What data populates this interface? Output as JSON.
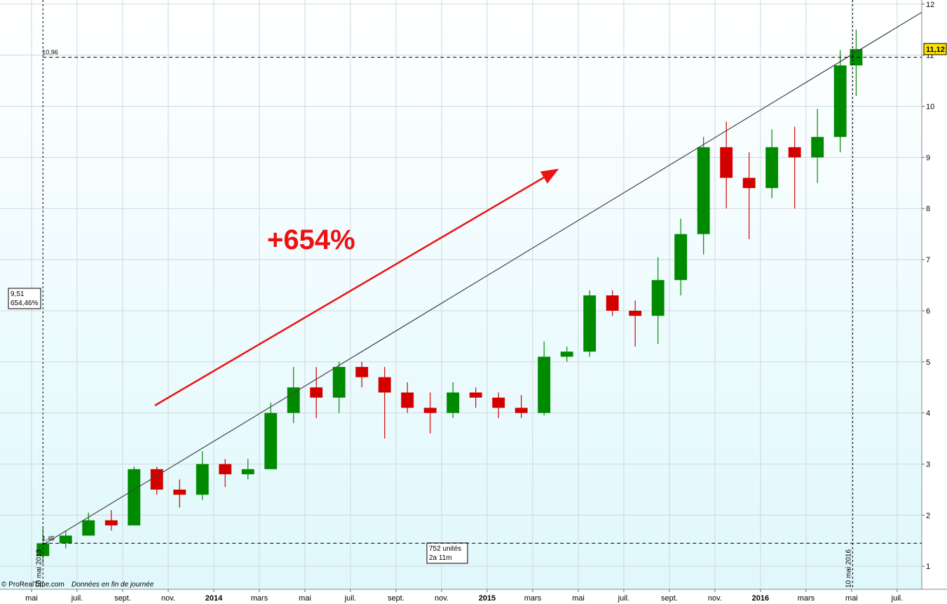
{
  "chart_data": {
    "type": "candlestick",
    "x": [
      0.5,
      1.5,
      2.5,
      3.5,
      4.5,
      5.5,
      6.5,
      7.5,
      8.5,
      9.5,
      10.5,
      11.5,
      12.5,
      13.5,
      14.5,
      15.5,
      16.5,
      17.5,
      18.5,
      19.5,
      20.5,
      21.5,
      22.5,
      23.5,
      24.5,
      25.5,
      26.5,
      27.5,
      28.5,
      29.5,
      30.5,
      31.5,
      32.5,
      33.5,
      34.5,
      35.5,
      36.2
    ],
    "open": [
      1.2,
      1.45,
      1.6,
      1.9,
      1.8,
      2.9,
      2.5,
      2.4,
      3.0,
      2.8,
      2.9,
      4.0,
      4.5,
      4.3,
      4.9,
      4.7,
      4.4,
      4.1,
      4.0,
      4.4,
      4.3,
      4.1,
      4.0,
      5.1,
      5.2,
      6.3,
      6.0,
      5.9,
      6.6,
      7.5,
      9.2,
      8.6,
      8.4,
      9.2,
      9.0,
      9.4,
      10.8
    ],
    "high": [
      1.75,
      1.7,
      2.05,
      2.1,
      2.95,
      2.95,
      2.7,
      3.25,
      3.1,
      3.1,
      4.2,
      4.9,
      4.9,
      5.0,
      5.0,
      4.9,
      4.6,
      4.4,
      4.6,
      4.5,
      4.4,
      4.35,
      5.4,
      5.3,
      6.4,
      6.4,
      6.2,
      7.05,
      7.8,
      9.4,
      9.7,
      9.1,
      9.55,
      9.6,
      9.95,
      11.1,
      11.5
    ],
    "low": [
      1.05,
      1.35,
      1.6,
      1.7,
      1.8,
      2.4,
      2.15,
      2.3,
      2.55,
      2.7,
      2.9,
      3.8,
      3.9,
      4.0,
      4.5,
      3.5,
      4.0,
      3.6,
      3.9,
      4.1,
      3.9,
      3.9,
      3.95,
      5.0,
      5.1,
      5.9,
      5.3,
      5.35,
      6.3,
      7.1,
      8.0,
      7.4,
      8.2,
      8.0,
      8.5,
      9.1,
      10.2
    ],
    "close": [
      1.45,
      1.6,
      1.9,
      1.8,
      2.9,
      2.5,
      2.4,
      3.0,
      2.8,
      2.9,
      4.0,
      4.5,
      4.3,
      4.9,
      4.7,
      4.4,
      4.1,
      4.0,
      4.4,
      4.3,
      4.1,
      4.0,
      5.1,
      5.2,
      6.3,
      6.0,
      5.9,
      6.6,
      7.5,
      9.2,
      8.6,
      8.4,
      9.2,
      9.0,
      9.4,
      10.8,
      11.12
    ],
    "up_color": "#008a00",
    "down_color": "#d40000",
    "xlim": [
      -1.385,
      39.08
    ],
    "xticks": [
      {
        "value": 0,
        "label": "mai"
      },
      {
        "value": 2,
        "label": "juil."
      },
      {
        "value": 4,
        "label": "sept."
      },
      {
        "value": 6,
        "label": "nov."
      },
      {
        "value": 8,
        "label": "2014"
      },
      {
        "value": 10,
        "label": "mars"
      },
      {
        "value": 12,
        "label": "mai"
      },
      {
        "value": 14,
        "label": "juil."
      },
      {
        "value": 16,
        "label": "sept."
      },
      {
        "value": 18,
        "label": "nov."
      },
      {
        "value": 20,
        "label": "2015"
      },
      {
        "value": 22,
        "label": "mars"
      },
      {
        "value": 24,
        "label": "mai"
      },
      {
        "value": 26,
        "label": "juil."
      },
      {
        "value": 28,
        "label": "sept."
      },
      {
        "value": 30,
        "label": "nov."
      },
      {
        "value": 32,
        "label": "2016"
      },
      {
        "value": 34,
        "label": "mars"
      },
      {
        "value": 36,
        "label": "mai"
      },
      {
        "value": 38,
        "label": "juil."
      }
    ],
    "ylim": [
      0.55,
      12.08
    ],
    "yticks": [
      1,
      2,
      3,
      4,
      5,
      6,
      7,
      8,
      9,
      10,
      11,
      12
    ],
    "grid": true,
    "trendline": {
      "x": [
        0.5,
        39.08
      ],
      "y": [
        1.42,
        11.84
      ]
    },
    "start_marker": {
      "x": 0.5,
      "label": "10 mai 2013"
    },
    "end_marker": {
      "x": 36.05,
      "label": "10 mai 2016"
    },
    "high_level": {
      "value": 10.96,
      "label": "10,96"
    },
    "low_level": {
      "value": 1.45,
      "label": "1,45"
    },
    "last_price": {
      "value": 11.12,
      "label": "11,12"
    },
    "info_box": [
      "9,51",
      "654,46%"
    ],
    "duration_box": [
      "752 unités",
      "2a 11m"
    ],
    "headline": "+654%",
    "copyright": "© ProRealTime.com",
    "footnote": "Données en fin de journée"
  }
}
